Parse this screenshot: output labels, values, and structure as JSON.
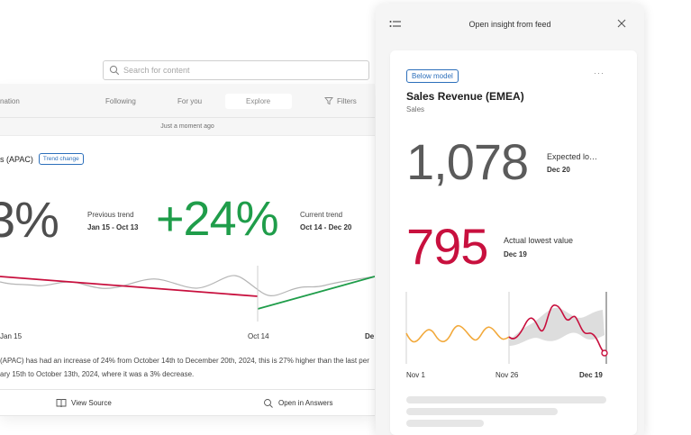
{
  "search": {
    "placeholder": "Search for content"
  },
  "feed": {
    "nav_left": "nation",
    "tabs": [
      "Following",
      "For you",
      "Explore"
    ],
    "filters_label": "Filters",
    "timestamp": "Just a moment ago",
    "insight_title": "s (APAC)",
    "badge": "Trend change",
    "previous_value": "3%",
    "previous_label": "Previous trend",
    "previous_dates": "Jan 15 - Oct 13",
    "current_value": "+24%",
    "current_label": "Current trend",
    "current_dates": "Oct 14 - Dec 20",
    "axis": [
      "Jan 15",
      "Oct 14",
      "De"
    ],
    "summary_line1": "(APAC) has had an increase of 24% from October 14th to December 20th, 2024, this is 27% higher than the last per",
    "summary_line2": "ary 15th to October 13th, 2024, where it was a 3% decrease.",
    "actions": {
      "view_source": "View Source",
      "open_answers": "Open in Answers"
    },
    "colors": {
      "previous_trend": "#c8103e",
      "current_trend": "#1f9d4a",
      "series": "#b5b5b5"
    }
  },
  "panel": {
    "title": "Open insight from feed",
    "card": {
      "badge": "Below model",
      "more": "···",
      "title": "Sales Revenue (EMEA)",
      "subtitle": "Sales",
      "kpi1": {
        "value": "1,078",
        "label": "Expected lo…",
        "date": "Dec 20"
      },
      "kpi2": {
        "value": "795",
        "label": "Actual lowest value",
        "date": "Dec 19"
      },
      "axis": [
        "Nov 1",
        "Nov 26",
        "Dec 19"
      ],
      "colors": {
        "history": "#f2a93b",
        "actual": "#c8103e",
        "band": "#d9d9d9"
      }
    }
  }
}
